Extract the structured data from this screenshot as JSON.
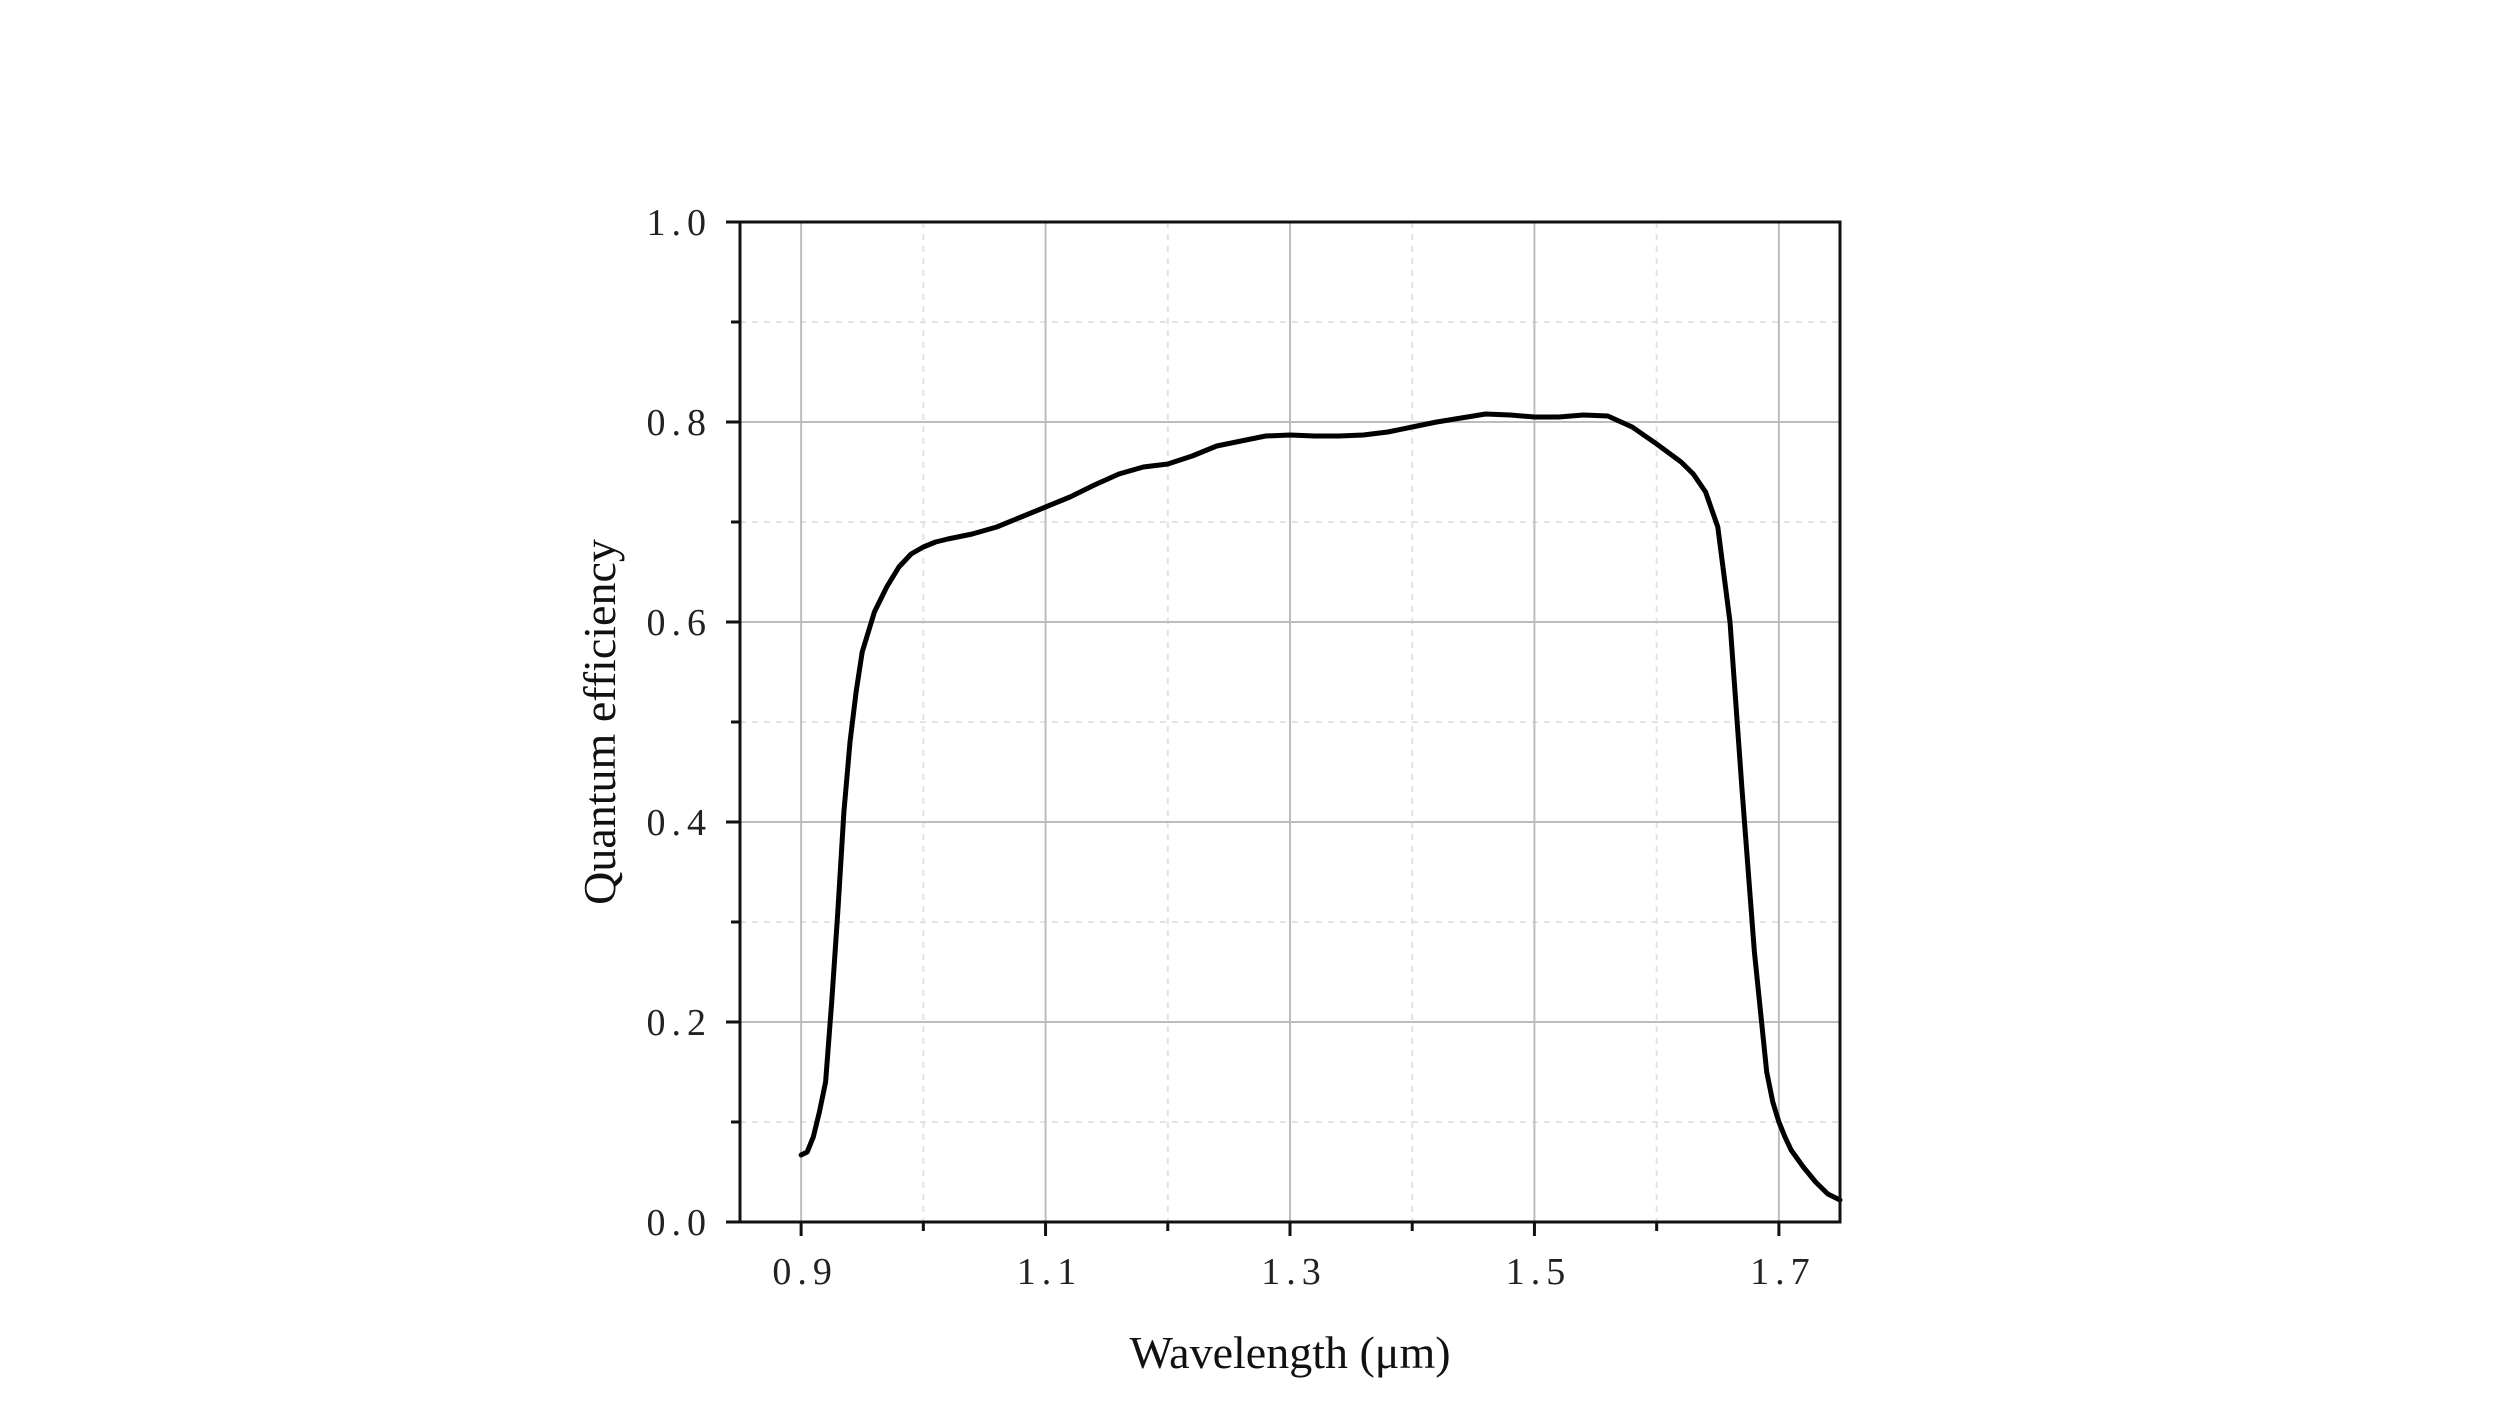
{
  "chart_data": {
    "type": "line",
    "title": "",
    "xlabel": "Wavelength (μm)",
    "ylabel": "Quantum efficiency",
    "xlim": [
      0.85,
      1.75
    ],
    "ylim": [
      0.0,
      1.0
    ],
    "x_ticks": [
      {
        "value": 0.9,
        "label": "0.9"
      },
      {
        "value": 1.1,
        "label": "1.1"
      },
      {
        "value": 1.3,
        "label": "1.3"
      },
      {
        "value": 1.5,
        "label": "1.5"
      },
      {
        "value": 1.7,
        "label": "1.7"
      }
    ],
    "x_minor_ticks": [
      1.0,
      1.2,
      1.4,
      1.6
    ],
    "y_ticks": [
      {
        "value": 0.0,
        "label": "0.0"
      },
      {
        "value": 0.2,
        "label": "0.2"
      },
      {
        "value": 0.4,
        "label": "0.4"
      },
      {
        "value": 0.6,
        "label": "0.6"
      },
      {
        "value": 0.8,
        "label": "0.8"
      },
      {
        "value": 1.0,
        "label": "1.0"
      }
    ],
    "y_minor_ticks": [
      0.1,
      0.3,
      0.5,
      0.7,
      0.9
    ],
    "grid": true,
    "legend": "none",
    "line_color": "#000000",
    "series": [
      {
        "x": [
          0.9,
          0.905,
          0.91,
          0.915,
          0.92,
          0.925,
          0.93,
          0.935,
          0.94,
          0.945,
          0.95,
          0.955,
          0.96,
          0.97,
          0.98,
          0.99,
          1.0,
          1.01,
          1.02,
          1.04,
          1.06,
          1.08,
          1.1,
          1.12,
          1.14,
          1.16,
          1.18,
          1.2,
          1.22,
          1.24,
          1.26,
          1.28,
          1.3,
          1.32,
          1.34,
          1.36,
          1.38,
          1.4,
          1.42,
          1.44,
          1.46,
          1.48,
          1.5,
          1.52,
          1.54,
          1.56,
          1.58,
          1.6,
          1.62,
          1.63,
          1.64,
          1.65,
          1.66,
          1.67,
          1.68,
          1.69,
          1.695,
          1.7,
          1.705,
          1.71,
          1.72,
          1.73,
          1.74,
          1.75
        ],
        "y": [
          0.067,
          0.07,
          0.085,
          0.11,
          0.14,
          0.22,
          0.31,
          0.41,
          0.48,
          0.53,
          0.57,
          0.59,
          0.61,
          0.635,
          0.655,
          0.668,
          0.675,
          0.68,
          0.683,
          0.688,
          0.695,
          0.705,
          0.715,
          0.725,
          0.737,
          0.748,
          0.755,
          0.758,
          0.766,
          0.776,
          0.781,
          0.786,
          0.787,
          0.786,
          0.786,
          0.787,
          0.79,
          0.795,
          0.8,
          0.804,
          0.808,
          0.807,
          0.805,
          0.805,
          0.807,
          0.806,
          0.795,
          0.778,
          0.76,
          0.748,
          0.73,
          0.695,
          0.6,
          0.43,
          0.27,
          0.15,
          0.12,
          0.1,
          0.085,
          0.072,
          0.055,
          0.04,
          0.028,
          0.022
        ]
      }
    ]
  }
}
